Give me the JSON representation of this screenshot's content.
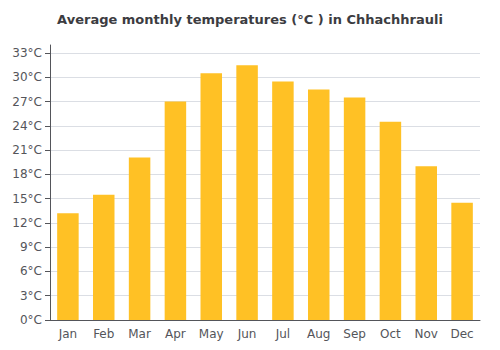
{
  "chart_data": {
    "type": "bar",
    "title": "Average monthly temperatures (°C ) in Chhachhrauli",
    "categories": [
      "Jan",
      "Feb",
      "Mar",
      "Apr",
      "May",
      "Jun",
      "Jul",
      "Aug",
      "Sep",
      "Oct",
      "Nov",
      "Dec"
    ],
    "values": [
      13.2,
      15.5,
      20.1,
      27.0,
      30.5,
      31.5,
      29.5,
      28.5,
      27.5,
      24.5,
      19.0,
      14.5
    ],
    "color": "#FFC125",
    "ylim": [
      0,
      34
    ],
    "yticks": [
      {
        "value": 0,
        "label": "0°C"
      },
      {
        "value": 3,
        "label": "3°C"
      },
      {
        "value": 6,
        "label": "6°C"
      },
      {
        "value": 9,
        "label": "9°C"
      },
      {
        "value": 12,
        "label": "12°C"
      },
      {
        "value": 15,
        "label": "15°C"
      },
      {
        "value": 18,
        "label": "18°C"
      },
      {
        "value": 21,
        "label": "21°C"
      },
      {
        "value": 24,
        "label": "24°C"
      },
      {
        "value": 27,
        "label": "27°C"
      },
      {
        "value": 30,
        "label": "30°C"
      },
      {
        "value": 33,
        "label": "33°C"
      }
    ],
    "grid": true
  }
}
